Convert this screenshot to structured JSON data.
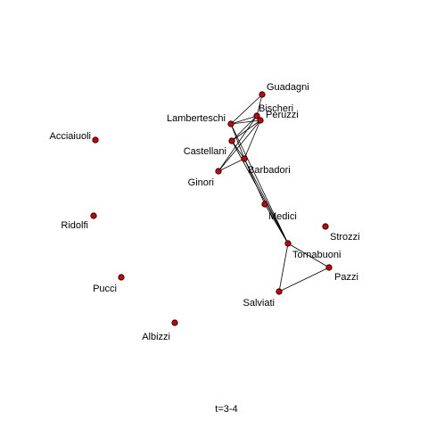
{
  "chart_data": {
    "type": "network",
    "time_label": "t=3-4",
    "node_color": "#cc0000",
    "node_outline": "#000000",
    "edge_color": "#000000",
    "nodes": [
      {
        "id": "Guadagni",
        "label": "Guadagni"
      },
      {
        "id": "Bischeri",
        "label": "Bischeri"
      },
      {
        "id": "Peruzzi",
        "label": "Peruzzi"
      },
      {
        "id": "Lamberteschi",
        "label": "Lamberteschi"
      },
      {
        "id": "Castellani",
        "label": "Castellani"
      },
      {
        "id": "Barbadori",
        "label": "Barbadori"
      },
      {
        "id": "Ginori",
        "label": "Ginori"
      },
      {
        "id": "Medici",
        "label": "Medici"
      },
      {
        "id": "Tornabuoni",
        "label": "Tornabuoni"
      },
      {
        "id": "Strozzi",
        "label": "Strozzi"
      },
      {
        "id": "Pazzi",
        "label": "Pazzi"
      },
      {
        "id": "Salviati",
        "label": "Salviati"
      },
      {
        "id": "Acciaiuoli",
        "label": "Acciaiuoli"
      },
      {
        "id": "Ridolfi",
        "label": "Ridolfi"
      },
      {
        "id": "Pucci",
        "label": "Pucci"
      },
      {
        "id": "Albizzi",
        "label": "Albizzi"
      }
    ],
    "edges": [
      [
        "Guadagni",
        "Lamberteschi"
      ],
      [
        "Guadagni",
        "Bischeri"
      ],
      [
        "Bischeri",
        "Lamberteschi"
      ],
      [
        "Bischeri",
        "Castellani"
      ],
      [
        "Bischeri",
        "Ginori"
      ],
      [
        "Peruzzi",
        "Lamberteschi"
      ],
      [
        "Peruzzi",
        "Castellani"
      ],
      [
        "Peruzzi",
        "Barbadori"
      ],
      [
        "Peruzzi",
        "Ginori"
      ],
      [
        "Lamberteschi",
        "Barbadori"
      ],
      [
        "Lamberteschi",
        "Tornabuoni"
      ],
      [
        "Castellani",
        "Barbadori"
      ],
      [
        "Castellani",
        "Tornabuoni"
      ],
      [
        "Barbadori",
        "Ginori"
      ],
      [
        "Barbadori",
        "Medici"
      ],
      [
        "Barbadori",
        "Tornabuoni"
      ],
      [
        "Medici",
        "Tornabuoni"
      ],
      [
        "Tornabuoni",
        "Salviati"
      ],
      [
        "Tornabuoni",
        "Pazzi"
      ],
      [
        "Salviati",
        "Pazzi"
      ]
    ]
  }
}
